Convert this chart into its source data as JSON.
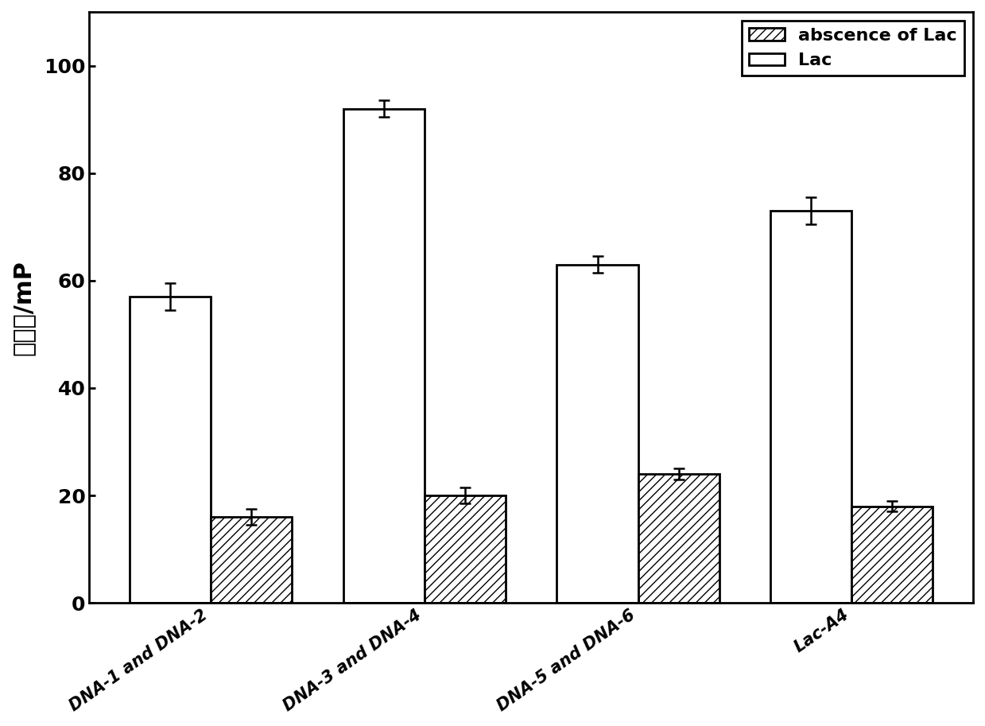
{
  "categories": [
    "DNA-1 and DNA-2",
    "DNA-3 and DNA-4",
    "DNA-5 and DNA-6",
    "Lac-A4"
  ],
  "absence_values": [
    16,
    20,
    24,
    18
  ],
  "lac_values": [
    57,
    92,
    63,
    73
  ],
  "absence_errors": [
    1.5,
    1.5,
    1.0,
    1.0
  ],
  "lac_errors": [
    2.5,
    1.5,
    1.5,
    2.5
  ],
  "ylabel": "极化率/mP",
  "ylim": [
    0,
    110
  ],
  "yticks": [
    0,
    20,
    40,
    60,
    80,
    100
  ],
  "legend_labels": [
    "abscence of Lac",
    "Lac"
  ],
  "bar_width": 0.38,
  "hatch_pattern": "///",
  "absence_color": "white",
  "lac_color": "white",
  "edge_color": "black",
  "background_color": "white",
  "figsize": [
    12.39,
    9.13
  ],
  "dpi": 100
}
